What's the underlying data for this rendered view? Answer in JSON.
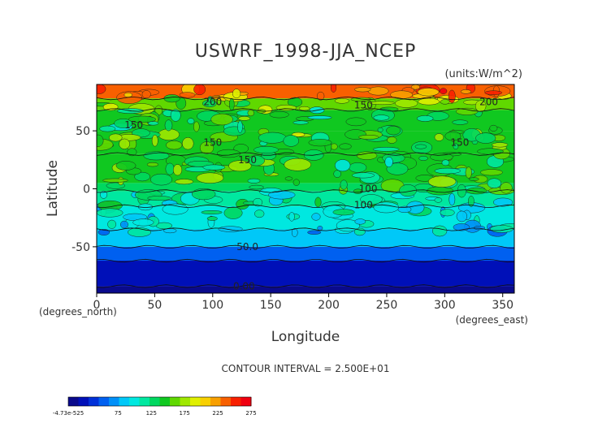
{
  "chart_data": {
    "type": "heatmap",
    "title": "USWRF_1998-JJA_NCEP",
    "units": "(units:W/m^2)",
    "xlabel": "Longitude",
    "ylabel": "Latitude",
    "x_sublabel": "(degrees_east)",
    "y_sublabel": "(degrees_north)",
    "xlim": [
      0,
      360
    ],
    "ylim": [
      -90,
      90
    ],
    "x_ticks": [
      0,
      50,
      100,
      150,
      200,
      250,
      300,
      350
    ],
    "y_ticks": [
      -50,
      0,
      50
    ],
    "contour_interval_text": "CONTOUR INTERVAL = 2.500E+01",
    "contour_labels": [
      {
        "text": "200",
        "x": 100,
        "y": 75
      },
      {
        "text": "150",
        "x": 32,
        "y": 55
      },
      {
        "text": "150",
        "x": 100,
        "y": 40
      },
      {
        "text": "150",
        "x": 130,
        "y": 25
      },
      {
        "text": "150",
        "x": 230,
        "y": 72
      },
      {
        "text": "150",
        "x": 313,
        "y": 40
      },
      {
        "text": "200",
        "x": 338,
        "y": 75
      },
      {
        "text": "100",
        "x": 234,
        "y": 0
      },
      {
        "text": "100",
        "x": 230,
        "y": -14
      },
      {
        "text": "50.0",
        "x": 130,
        "y": -50
      },
      {
        "text": "0.00",
        "x": 127,
        "y": -84
      }
    ],
    "zonal_bands": [
      {
        "lat_range": [
          -90,
          -84
        ],
        "value": 0
      },
      {
        "lat_range": [
          -84,
          -62
        ],
        "value": 30
      },
      {
        "lat_range": [
          -62,
          -50
        ],
        "value": 55
      },
      {
        "lat_range": [
          -50,
          -35
        ],
        "value": 80
      },
      {
        "lat_range": [
          -35,
          -15
        ],
        "value": 95
      },
      {
        "lat_range": [
          -15,
          -2
        ],
        "value": 112
      },
      {
        "lat_range": [
          -2,
          5
        ],
        "value": 130
      },
      {
        "lat_range": [
          5,
          30
        ],
        "value": 140
      },
      {
        "lat_range": [
          30,
          50
        ],
        "value": 150
      },
      {
        "lat_range": [
          50,
          68
        ],
        "value": 140
      },
      {
        "lat_range": [
          68,
          78
        ],
        "value": 165
      },
      {
        "lat_range": [
          78,
          90
        ],
        "value": 230
      }
    ],
    "colorbar": {
      "min_label": "-4.73e-525",
      "tick_labels": [
        "75",
        "125",
        "175",
        "225",
        "275"
      ],
      "colors": [
        "#0a0a8c",
        "#0010b8",
        "#0030d8",
        "#0060f0",
        "#0090f8",
        "#00c8f8",
        "#00e8e0",
        "#00e8a0",
        "#00d860",
        "#10c820",
        "#60d800",
        "#a0e800",
        "#e0f000",
        "#f8d000",
        "#f8a000",
        "#f86000",
        "#f82000",
        "#f00010"
      ]
    }
  }
}
